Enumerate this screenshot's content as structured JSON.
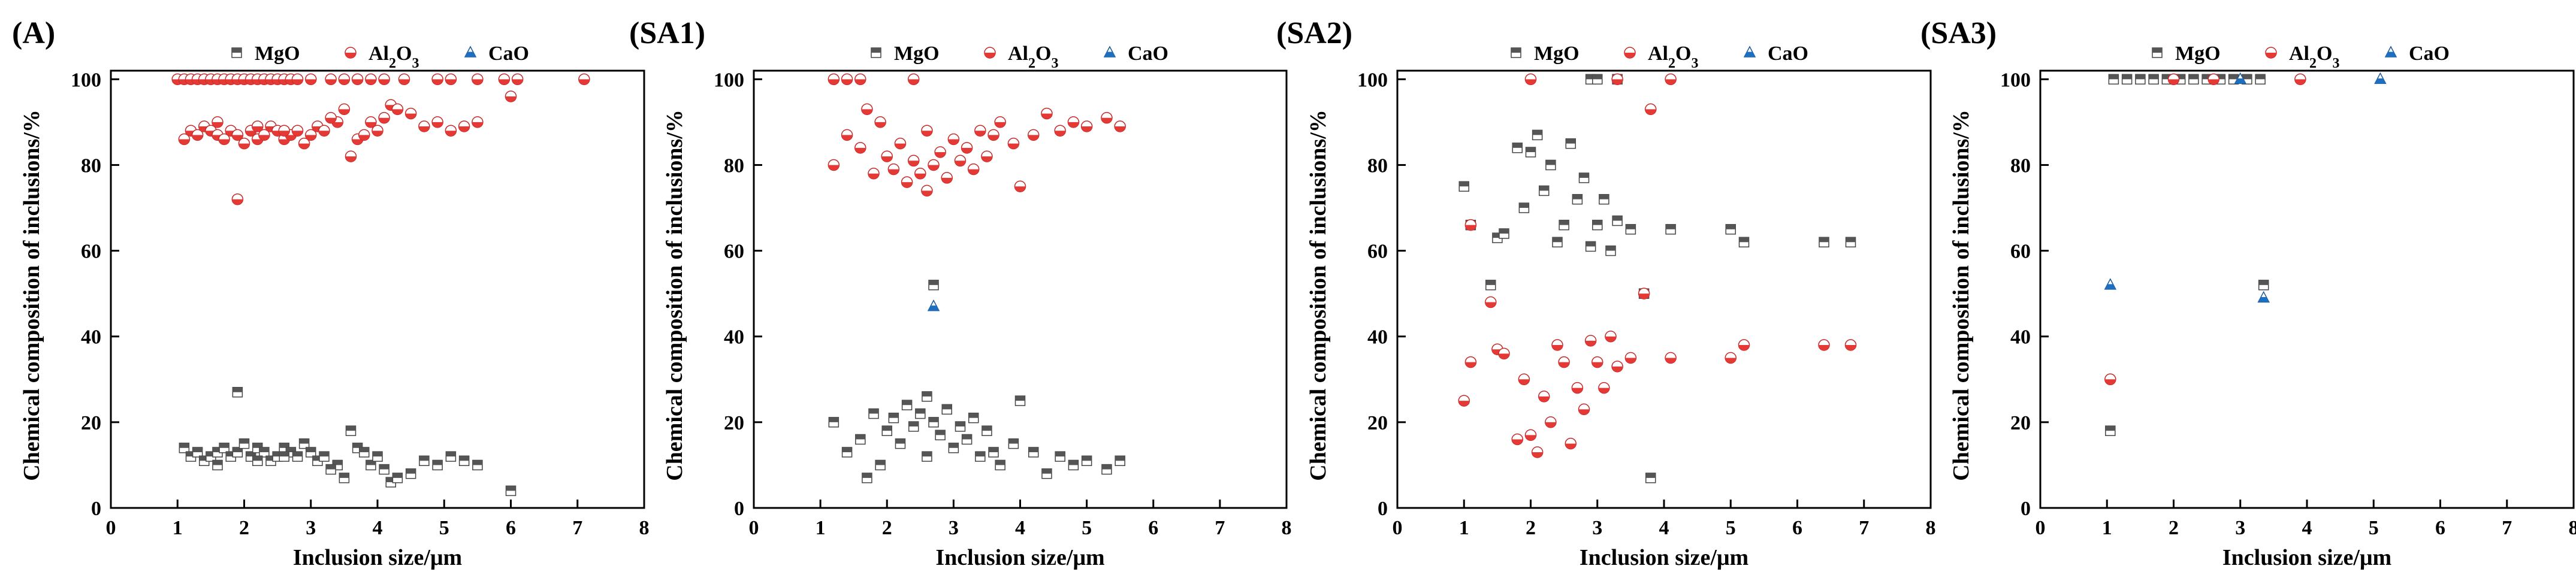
{
  "figure": {
    "description_labels": [
      "(A)",
      "(SA1)",
      "(SA2)",
      "(SA3)"
    ]
  },
  "legend": {
    "items": [
      {
        "name": "MgO",
        "marker": "square",
        "color": "#555555"
      },
      {
        "name": "Al2O3",
        "marker": "circle",
        "color": "#e53935"
      },
      {
        "name": "CaO",
        "marker": "triangle",
        "color": "#1e6fc0"
      }
    ]
  },
  "chart_data": [
    {
      "type": "scatter",
      "panel": "(A)",
      "xlabel": "Inclusion size/μm",
      "ylabel": "Chemical composition of inclusions/%",
      "xlim": [
        0,
        8
      ],
      "ylim": [
        0,
        102
      ],
      "xticks": [
        0,
        1,
        2,
        3,
        4,
        5,
        6,
        7,
        8
      ],
      "yticks": [
        0,
        20,
        40,
        60,
        80,
        100
      ],
      "series": [
        {
          "name": "MgO",
          "x": [
            1.1,
            1.2,
            1.3,
            1.4,
            1.5,
            1.6,
            1.7,
            1.8,
            1.9,
            2.0,
            2.1,
            2.2,
            2.3,
            2.4,
            2.5,
            2.6,
            2.7,
            2.8,
            2.9,
            3.0,
            3.1,
            3.2,
            3.4,
            3.5,
            3.6,
            3.7,
            3.8,
            3.9,
            4.0,
            4.1,
            4.2,
            4.3,
            4.5,
            4.7,
            4.9,
            5.1,
            5.3,
            5.5,
            6.0,
            1.9,
            1.6,
            2.2,
            2.6,
            3.3
          ],
          "y": [
            14,
            12,
            13,
            11,
            12,
            13,
            14,
            12,
            13,
            15,
            12,
            14,
            13,
            11,
            12,
            14,
            13,
            12,
            15,
            13,
            11,
            12,
            10,
            7,
            18,
            14,
            13,
            10,
            12,
            9,
            6,
            7,
            8,
            11,
            10,
            12,
            11,
            10,
            4,
            27,
            10,
            11,
            12,
            9
          ]
        },
        {
          "name": "Al2O3",
          "x": [
            1.1,
            1.2,
            1.3,
            1.4,
            1.5,
            1.6,
            1.7,
            1.8,
            1.9,
            2.0,
            2.1,
            2.2,
            2.3,
            2.4,
            2.5,
            2.6,
            2.7,
            2.8,
            2.9,
            3.0,
            3.1,
            3.2,
            3.4,
            3.5,
            3.6,
            3.7,
            3.8,
            3.9,
            4.0,
            4.1,
            4.2,
            4.3,
            4.5,
            4.7,
            4.9,
            5.1,
            5.3,
            5.5,
            6.0,
            1.9,
            1.6,
            2.2,
            2.6,
            3.3,
            1.0,
            1.1,
            1.2,
            1.3,
            1.4,
            1.5,
            1.6,
            1.7,
            1.8,
            1.9,
            2.0,
            2.1,
            2.2,
            2.3,
            2.4,
            2.5,
            2.6,
            2.7,
            2.8,
            3.0,
            3.3,
            3.5,
            3.7,
            3.9,
            4.1,
            4.4,
            4.9,
            5.1,
            5.5,
            5.9,
            6.1,
            7.1
          ],
          "y": [
            86,
            88,
            87,
            89,
            88,
            87,
            86,
            88,
            87,
            85,
            88,
            86,
            87,
            89,
            88,
            86,
            87,
            88,
            85,
            87,
            89,
            88,
            90,
            93,
            82,
            86,
            87,
            90,
            88,
            91,
            94,
            93,
            92,
            89,
            90,
            88,
            89,
            90,
            96,
            72,
            90,
            89,
            88,
            91,
            100,
            100,
            100,
            100,
            100,
            100,
            100,
            100,
            100,
            100,
            100,
            100,
            100,
            100,
            100,
            100,
            100,
            100,
            100,
            100,
            100,
            100,
            100,
            100,
            100,
            100,
            100,
            100,
            100,
            100,
            100,
            100
          ]
        },
        {
          "name": "CaO",
          "x": [],
          "y": []
        }
      ]
    },
    {
      "type": "scatter",
      "panel": "(SA1)",
      "xlabel": "Inclusion size/μm",
      "ylabel": "Chemical composition of inclusions/%",
      "xlim": [
        0,
        8
      ],
      "ylim": [
        0,
        102
      ],
      "xticks": [
        0,
        1,
        2,
        3,
        4,
        5,
        6,
        7,
        8
      ],
      "yticks": [
        0,
        20,
        40,
        60,
        80,
        100
      ],
      "series": [
        {
          "name": "MgO",
          "x": [
            1.2,
            1.4,
            1.6,
            1.8,
            1.9,
            2.0,
            2.1,
            2.2,
            2.3,
            2.4,
            2.5,
            2.6,
            2.7,
            2.8,
            2.9,
            3.0,
            3.1,
            3.2,
            3.3,
            3.4,
            3.5,
            3.7,
            3.9,
            4.0,
            4.2,
            4.4,
            4.6,
            4.8,
            5.0,
            5.3,
            5.5,
            1.7,
            2.6,
            3.6,
            2.7
          ],
          "y": [
            20,
            13,
            16,
            22,
            10,
            18,
            21,
            15,
            24,
            19,
            22,
            12,
            20,
            17,
            23,
            14,
            19,
            16,
            21,
            12,
            18,
            10,
            15,
            25,
            13,
            8,
            12,
            10,
            11,
            9,
            11,
            7,
            26,
            13,
            52
          ]
        },
        {
          "name": "Al2O3",
          "x": [
            1.2,
            1.4,
            1.6,
            1.8,
            1.9,
            2.0,
            2.1,
            2.2,
            2.3,
            2.4,
            2.5,
            2.6,
            2.7,
            2.8,
            2.9,
            3.0,
            3.1,
            3.2,
            3.3,
            3.4,
            3.5,
            3.7,
            3.9,
            4.0,
            4.2,
            4.4,
            4.6,
            4.8,
            5.0,
            5.3,
            5.5,
            1.7,
            2.6,
            3.6,
            1.2,
            1.4,
            1.6,
            2.4
          ],
          "y": [
            80,
            87,
            84,
            78,
            90,
            82,
            79,
            85,
            76,
            81,
            78,
            88,
            80,
            83,
            77,
            86,
            81,
            84,
            79,
            88,
            82,
            90,
            85,
            75,
            87,
            92,
            88,
            90,
            89,
            91,
            89,
            93,
            74,
            87,
            100,
            100,
            100,
            100
          ]
        },
        {
          "name": "CaO",
          "x": [
            2.7
          ],
          "y": [
            47
          ]
        }
      ]
    },
    {
      "type": "scatter",
      "panel": "(SA2)",
      "xlabel": "Inclusion size/μm",
      "ylabel": "Chemical composition of inclusions/%",
      "xlim": [
        0,
        8
      ],
      "ylim": [
        0,
        102
      ],
      "xticks": [
        0,
        1,
        2,
        3,
        4,
        5,
        6,
        7,
        8
      ],
      "yticks": [
        0,
        20,
        40,
        60,
        80,
        100
      ],
      "series": [
        {
          "name": "MgO",
          "x": [
            1.0,
            1.1,
            1.4,
            1.5,
            1.6,
            1.8,
            1.9,
            2.0,
            2.1,
            2.2,
            2.3,
            2.4,
            2.5,
            2.6,
            2.7,
            2.8,
            2.9,
            3.0,
            3.1,
            3.2,
            3.3,
            3.5,
            3.7,
            3.8,
            4.1,
            5.0,
            5.2,
            6.4,
            6.8,
            2.9,
            3.0,
            3.3
          ],
          "y": [
            75,
            66,
            52,
            63,
            64,
            84,
            70,
            83,
            87,
            74,
            80,
            62,
            66,
            85,
            72,
            77,
            61,
            66,
            72,
            60,
            67,
            65,
            50,
            7,
            65,
            65,
            62,
            62,
            62,
            100,
            100,
            100
          ]
        },
        {
          "name": "Al2O3",
          "x": [
            1.0,
            1.1,
            1.4,
            1.5,
            1.6,
            1.8,
            1.9,
            2.0,
            2.1,
            2.2,
            2.3,
            2.4,
            2.5,
            2.6,
            2.7,
            2.8,
            2.9,
            3.0,
            3.1,
            3.2,
            3.3,
            3.5,
            3.7,
            3.8,
            4.1,
            5.0,
            5.2,
            6.4,
            6.8,
            2.0,
            3.3,
            4.1,
            1.1
          ],
          "y": [
            25,
            34,
            48,
            37,
            36,
            16,
            30,
            17,
            13,
            26,
            20,
            38,
            34,
            15,
            28,
            23,
            39,
            34,
            28,
            40,
            33,
            35,
            50,
            93,
            35,
            35,
            38,
            38,
            38,
            100,
            100,
            100,
            66
          ]
        },
        {
          "name": "CaO",
          "x": [],
          "y": []
        }
      ]
    },
    {
      "type": "scatter",
      "panel": "(SA3)",
      "xlabel": "Inclusion size/μm",
      "ylabel": "Chemical composition of inclusions/%",
      "xlim": [
        0,
        8
      ],
      "ylim": [
        0,
        102
      ],
      "xticks": [
        0,
        1,
        2,
        3,
        4,
        5,
        6,
        7,
        8
      ],
      "yticks": [
        0,
        20,
        40,
        60,
        80,
        100
      ],
      "series": [
        {
          "name": "MgO",
          "x": [
            1.1,
            1.3,
            1.5,
            1.7,
            1.9,
            2.1,
            2.3,
            2.5,
            2.7,
            2.9,
            3.1,
            3.3,
            1.05,
            3.35
          ],
          "y": [
            100,
            100,
            100,
            100,
            100,
            100,
            100,
            100,
            100,
            100,
            100,
            100,
            18,
            52
          ]
        },
        {
          "name": "Al2O3",
          "x": [
            2.0,
            2.6,
            3.9,
            1.05
          ],
          "y": [
            100,
            100,
            100,
            30
          ]
        },
        {
          "name": "CaO",
          "x": [
            3.0,
            5.1,
            1.05,
            3.35
          ],
          "y": [
            100,
            100,
            52,
            49
          ]
        }
      ]
    }
  ]
}
